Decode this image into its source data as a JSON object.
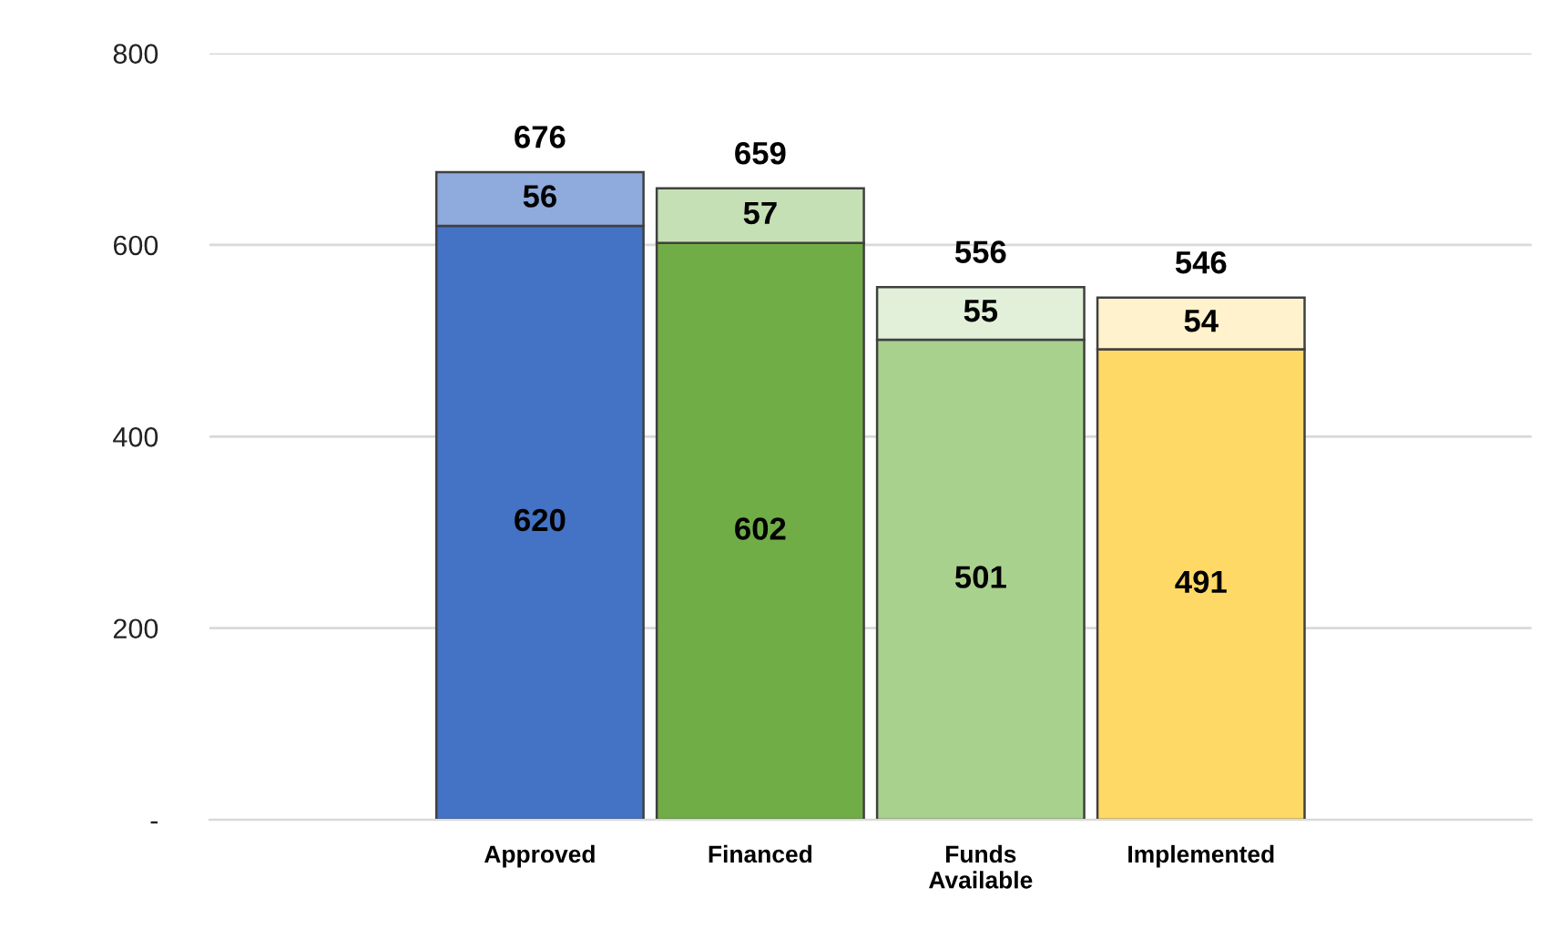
{
  "chart_data": {
    "type": "bar",
    "stacked": true,
    "data_labels": true,
    "grid": "y",
    "categories": [
      null,
      "Approved",
      "Financed",
      "Funds\nAvailable",
      "Implemented",
      null
    ],
    "series": [
      {
        "colors": [
          "#4472c4",
          "#4472c4",
          "#70ad47",
          "#a9d18e",
          "#ffd966",
          "#ffd966"
        ],
        "values": [
          null,
          620,
          602,
          501,
          491,
          null
        ]
      },
      {
        "colors": [
          "#8faadc",
          "#8faadc",
          "#c5e0b4",
          "#e2f0d9",
          "#fff2cc",
          "#fff2cc"
        ],
        "values": [
          null,
          56,
          57,
          55,
          54,
          null
        ]
      }
    ],
    "totals": [
      null,
      "676",
      "659",
      "556",
      "546",
      null
    ],
    "ylim": [
      0,
      800
    ],
    "yticks": [
      {
        "value": 0,
        "label": "-"
      },
      200,
      400,
      600,
      800
    ]
  }
}
